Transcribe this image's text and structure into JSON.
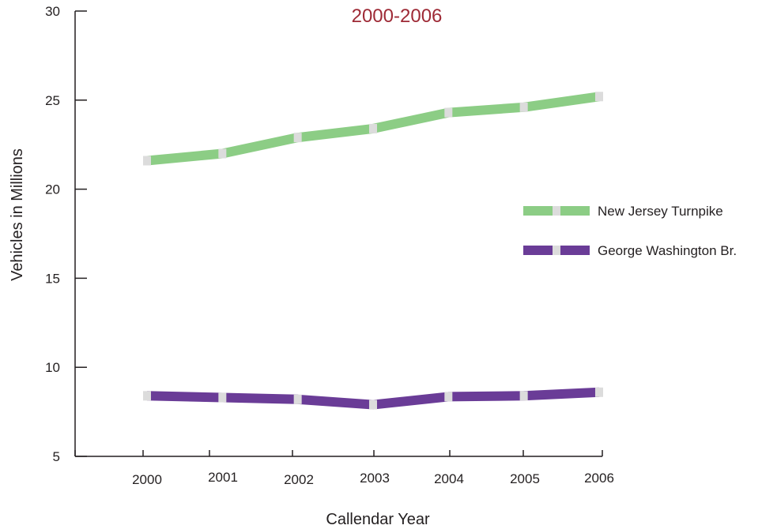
{
  "chart_data": {
    "type": "line",
    "subtitle": "2000-2006",
    "xlabel": "Callendar Year",
    "ylabel": "Vehicles in Millions",
    "categories": [
      "2000",
      "2001",
      "2002",
      "2003",
      "2004",
      "2005",
      "2006"
    ],
    "y_ticks": [
      "5",
      "10",
      "15",
      "20",
      "25",
      "30"
    ],
    "ylim": [
      5,
      30
    ],
    "grid": false,
    "legend_position": "right",
    "series": [
      {
        "name": "New Jersey Turnpike",
        "color": "#8ccd85",
        "values": [
          21.6,
          22.0,
          22.9,
          23.4,
          24.3,
          24.6,
          25.2
        ]
      },
      {
        "name": "George Washington Br.",
        "color": "#6a3c97",
        "values": [
          8.4,
          8.3,
          8.2,
          7.9,
          8.35,
          8.4,
          8.6
        ]
      }
    ],
    "marker_color": "#dcdcdc",
    "subtitle_color": "#9e2a36"
  }
}
